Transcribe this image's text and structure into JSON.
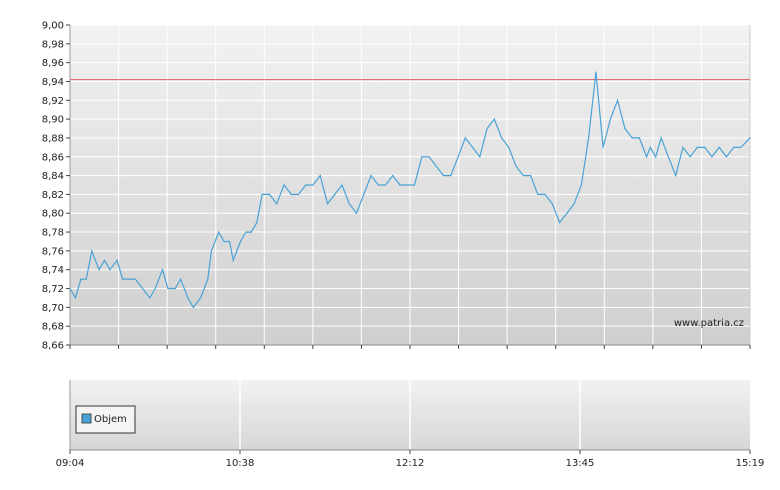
{
  "chart_data": [
    {
      "type": "line",
      "title": "",
      "xlabel": "",
      "ylabel": "",
      "ylim": [
        8.66,
        9.0
      ],
      "yticks": [
        "9,00",
        "8,98",
        "8,96",
        "8,94",
        "8,92",
        "8,90",
        "8,88",
        "8,86",
        "8,84",
        "8,82",
        "8,80",
        "8,78",
        "8,76",
        "8,74",
        "8,72",
        "8,70",
        "8,68",
        "8,66"
      ],
      "ytick_values": [
        9.0,
        8.98,
        8.96,
        8.94,
        8.92,
        8.9,
        8.88,
        8.86,
        8.84,
        8.82,
        8.8,
        8.78,
        8.76,
        8.74,
        8.72,
        8.7,
        8.68,
        8.66
      ],
      "xlim": [
        "09:04",
        "15:19"
      ],
      "reference_line": {
        "value": 8.942,
        "color": "#e06060"
      },
      "grid": true,
      "watermark": "www.patria.cz",
      "series": [
        {
          "color": "#4aa3d6",
          "x": [
            "09:04",
            "09:07",
            "09:10",
            "09:13",
            "09:16",
            "09:20",
            "09:23",
            "09:26",
            "09:30",
            "09:33",
            "09:37",
            "09:40",
            "09:44",
            "09:48",
            "09:51",
            "09:55",
            "09:58",
            "10:02",
            "10:05",
            "10:09",
            "10:12",
            "10:16",
            "10:20",
            "10:22",
            "10:26",
            "10:29",
            "10:32",
            "10:34",
            "10:36",
            "10:38",
            "10:41",
            "10:44",
            "10:47",
            "10:50",
            "10:54",
            "10:58",
            "11:02",
            "11:06",
            "11:10",
            "11:14",
            "11:18",
            "11:22",
            "11:26",
            "11:30",
            "11:34",
            "11:38",
            "11:42",
            "11:46",
            "11:50",
            "11:54",
            "11:58",
            "12:02",
            "12:06",
            "12:10",
            "12:14",
            "12:18",
            "12:22",
            "12:26",
            "12:30",
            "12:34",
            "12:38",
            "12:42",
            "12:46",
            "12:50",
            "12:54",
            "12:58",
            "13:02",
            "13:06",
            "13:10",
            "13:14",
            "13:18",
            "13:22",
            "13:26",
            "13:30",
            "13:34",
            "13:38",
            "13:42",
            "13:46",
            "13:50",
            "13:54",
            "13:58",
            "14:02",
            "14:06",
            "14:10",
            "14:14",
            "14:18",
            "14:20",
            "14:22",
            "14:24",
            "14:27",
            "14:30",
            "14:34",
            "14:38",
            "14:42",
            "14:46",
            "14:50",
            "14:54",
            "14:58",
            "15:02",
            "15:06",
            "15:10",
            "15:14",
            "15:19"
          ],
          "values": [
            8.72,
            8.71,
            8.73,
            8.73,
            8.76,
            8.74,
            8.75,
            8.74,
            8.75,
            8.73,
            8.73,
            8.73,
            8.72,
            8.71,
            8.72,
            8.74,
            8.72,
            8.72,
            8.73,
            8.71,
            8.7,
            8.71,
            8.73,
            8.76,
            8.78,
            8.77,
            8.77,
            8.75,
            8.76,
            8.77,
            8.78,
            8.78,
            8.79,
            8.82,
            8.82,
            8.81,
            8.83,
            8.82,
            8.82,
            8.83,
            8.83,
            8.84,
            8.81,
            8.82,
            8.83,
            8.81,
            8.8,
            8.82,
            8.84,
            8.83,
            8.83,
            8.84,
            8.83,
            8.83,
            8.83,
            8.86,
            8.86,
            8.85,
            8.84,
            8.84,
            8.86,
            8.88,
            8.87,
            8.86,
            8.89,
            8.9,
            8.88,
            8.87,
            8.85,
            8.84,
            8.84,
            8.82,
            8.82,
            8.81,
            8.79,
            8.8,
            8.81,
            8.83,
            8.88,
            8.95,
            8.87,
            8.9,
            8.92,
            8.89,
            8.88,
            8.88,
            8.87,
            8.86,
            8.87,
            8.86,
            8.88,
            8.86,
            8.84,
            8.87,
            8.86,
            8.87,
            8.87,
            8.86,
            8.87,
            8.86,
            8.87,
            8.87,
            8.88
          ]
        }
      ]
    },
    {
      "type": "bar",
      "title": "",
      "legend": [
        "Objem"
      ],
      "legend_color": "#4aa3d6",
      "xticks": [
        "09:04",
        "10:38",
        "12:12",
        "13:45",
        "15:19"
      ],
      "values": []
    }
  ]
}
